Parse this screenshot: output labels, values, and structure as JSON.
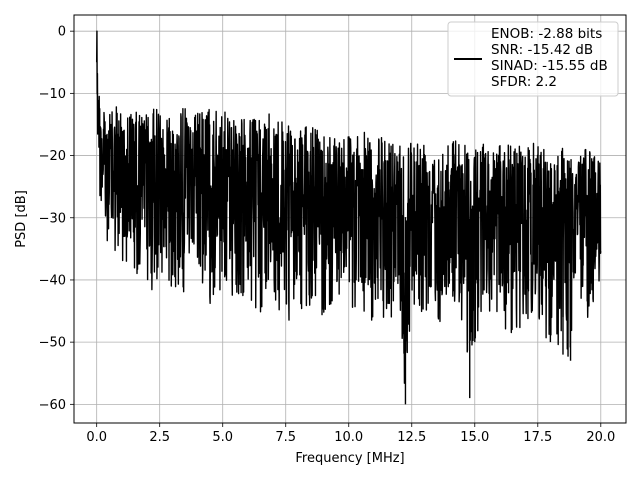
{
  "chart_data": {
    "type": "line",
    "title": "",
    "xlabel": "Frequency [MHz]",
    "ylabel": "PSD [dB]",
    "xlim": [
      -0.9,
      21.0
    ],
    "ylim": [
      -63.0,
      2.6
    ],
    "xticks": [
      0.0,
      2.5,
      5.0,
      7.5,
      10.0,
      12.5,
      15.0,
      17.5,
      20.0
    ],
    "xtick_labels": [
      "0.0",
      "2.5",
      "5.0",
      "7.5",
      "10.0",
      "12.5",
      "15.0",
      "17.5",
      "20.0"
    ],
    "yticks": [
      0,
      -10,
      -20,
      -30,
      -40,
      -50,
      -60
    ],
    "ytick_labels": [
      "0",
      "−10",
      "−20",
      "−30",
      "−40",
      "−50",
      "−60"
    ],
    "grid": true,
    "legend_position": "top-right",
    "series": [
      {
        "name": "ENOB: -2.88 bits\nSNR: -15.42 dB\nSINAD: -15.55 dB\nSFDR: 2.2",
        "legend_lines": [
          "ENOB: -2.88 bits",
          "SNR: -15.42 dB",
          "SINAD: -15.55 dB",
          "SFDR: 2.2"
        ],
        "color": "#000000",
        "x": [
          0.0,
          0.02,
          0.05,
          0.1,
          0.15,
          0.2,
          0.3,
          0.4,
          0.5,
          0.6,
          0.8,
          1.0,
          1.3,
          1.6,
          2.0,
          2.5,
          3.0,
          3.5,
          4.0,
          4.5,
          5.0,
          5.5,
          6.0,
          6.5,
          7.0,
          7.5,
          8.0,
          8.5,
          9.0,
          9.5,
          10.0,
          10.5,
          11.0,
          11.5,
          12.0,
          12.25,
          12.5,
          13.0,
          13.5,
          14.0,
          14.5,
          14.8,
          15.0,
          15.5,
          16.0,
          16.5,
          17.0,
          17.5,
          18.0,
          18.5,
          18.8,
          19.0,
          19.5,
          20.0
        ],
        "upper": [
          -5,
          0,
          -3,
          -8,
          -14,
          -12,
          -13,
          -12,
          -11,
          -13,
          -12,
          -12,
          -13,
          -13,
          -13,
          -12,
          -13,
          -12,
          -13,
          -12,
          -13,
          -13,
          -14,
          -14,
          -13,
          -15,
          -16,
          -15,
          -16,
          -16,
          -16,
          -16,
          -17,
          -17,
          -17,
          -17,
          -17,
          -17,
          -18,
          -17,
          -17,
          -18,
          -18,
          -18,
          -18,
          -18,
          -18,
          -18,
          -19,
          -18,
          -19,
          -19,
          -19,
          -19
        ],
        "lower": [
          -20,
          -15,
          -25,
          -22,
          -30,
          -28,
          -35,
          -36,
          -33,
          -34,
          -38,
          -37,
          -39,
          -40,
          -41,
          -43,
          -41,
          -43,
          -40,
          -44,
          -42,
          -43,
          -44,
          -46,
          -44,
          -48,
          -45,
          -45,
          -46,
          -44,
          -45,
          -46,
          -47,
          -46,
          -46,
          -60,
          -46,
          -45,
          -47,
          -47,
          -48,
          -59,
          -50,
          -46,
          -48,
          -49,
          -47,
          -48,
          -50,
          -52,
          -53,
          -48,
          -47,
          -40
        ]
      }
    ]
  }
}
